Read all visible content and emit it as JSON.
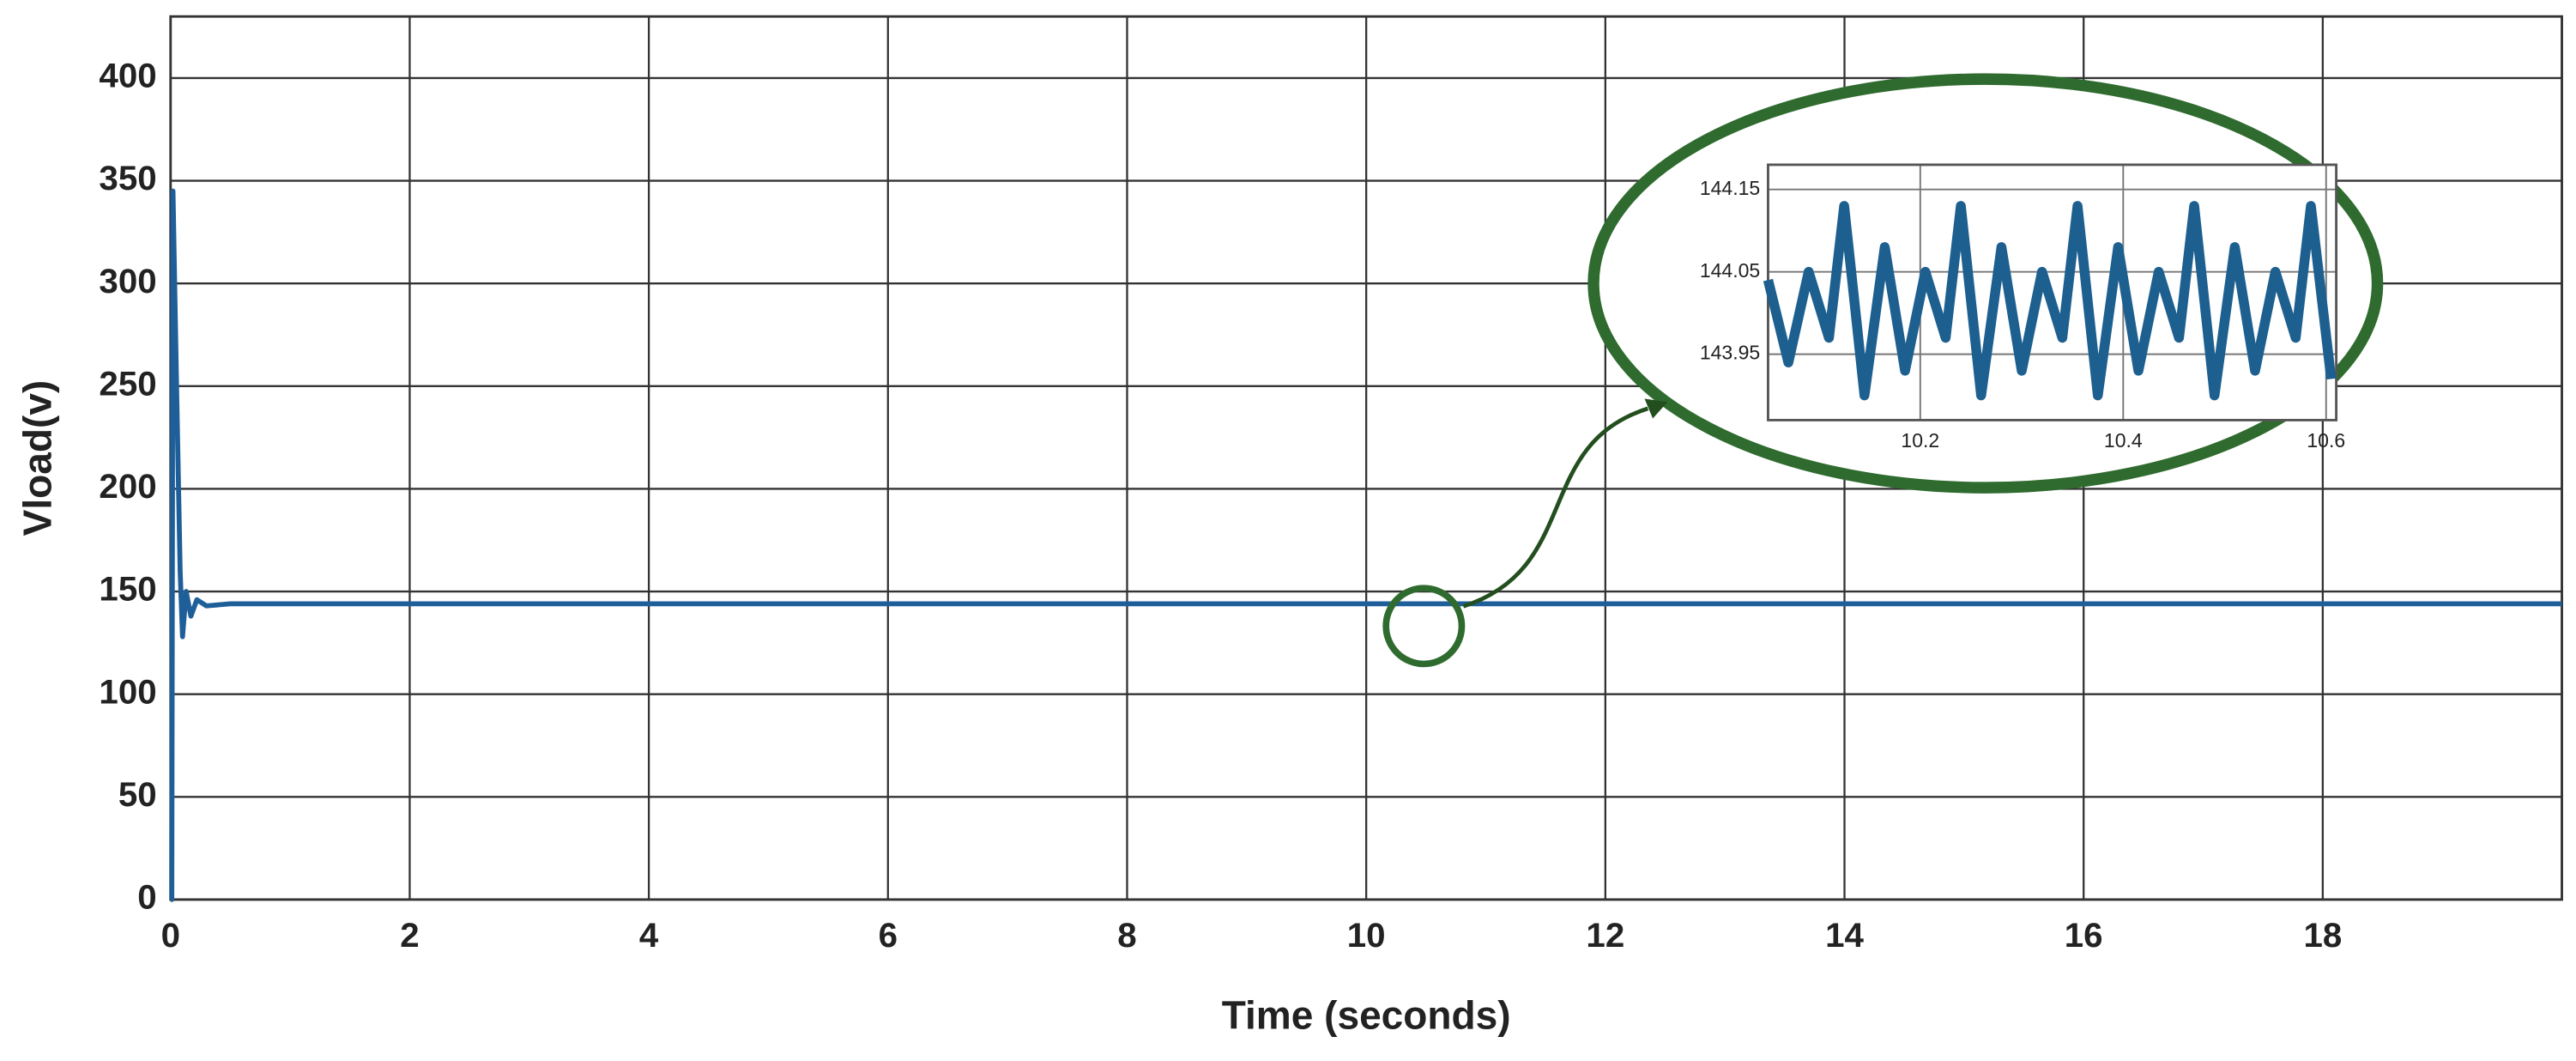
{
  "chart_data": [
    {
      "type": "line",
      "xlabel": "Time (seconds)",
      "ylabel": "Vload(v)",
      "xlim": [
        0,
        20
      ],
      "xticks": [
        0,
        2,
        4,
        6,
        8,
        10,
        12,
        14,
        16,
        18
      ],
      "ylim": [
        0,
        430
      ],
      "yticks": [
        0,
        50,
        100,
        150,
        200,
        250,
        300,
        350,
        400
      ],
      "grid": true,
      "series": [
        {
          "color": "#1f5f99",
          "x": [
            0,
            0.01,
            0.02,
            0.05,
            0.08,
            0.1,
            0.13,
            0.17,
            0.22,
            0.3,
            0.5,
            20
          ],
          "values": [
            0,
            0,
            345,
            250,
            160,
            128,
            150,
            138,
            146,
            143,
            144,
            144
          ]
        }
      ]
    },
    {
      "type": "line",
      "xlim": [
        10.05,
        10.61
      ],
      "xticks": [
        10.2,
        10.4,
        10.6
      ],
      "ylim": [
        143.87,
        144.18
      ],
      "yticks": [
        143.95,
        144.05,
        144.15
      ],
      "grid": true,
      "series": [
        {
          "color": "#1d5f8f",
          "x": [
            10.05,
            10.07,
            10.09,
            10.11,
            10.125,
            10.145,
            10.165,
            10.185,
            10.205,
            10.225,
            10.24,
            10.26,
            10.28,
            10.3,
            10.32,
            10.34,
            10.355,
            10.375,
            10.395,
            10.415,
            10.435,
            10.455,
            10.47,
            10.49,
            10.51,
            10.53,
            10.55,
            10.57,
            10.585,
            10.605
          ],
          "values": [
            144.04,
            143.94,
            144.05,
            143.97,
            144.13,
            143.9,
            144.08,
            143.93,
            144.05,
            143.97,
            144.13,
            143.9,
            144.08,
            143.93,
            144.05,
            143.97,
            144.13,
            143.9,
            144.08,
            143.93,
            144.05,
            143.97,
            144.13,
            143.9,
            144.08,
            143.93,
            144.05,
            143.97,
            144.13,
            143.92
          ]
        }
      ]
    }
  ]
}
